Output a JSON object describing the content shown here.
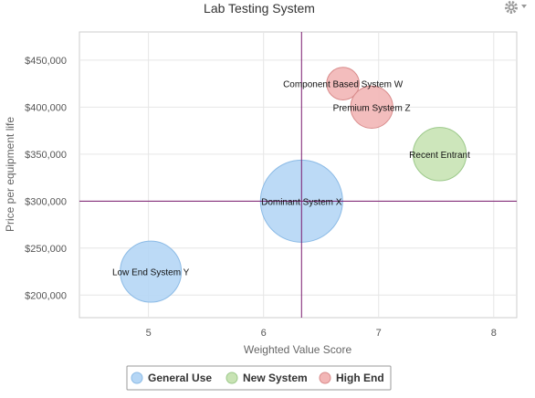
{
  "chart_data": {
    "type": "bubble",
    "title": "Lab Testing System",
    "xlabel": "Weighted Value Score",
    "ylabel": "Price per equipment life",
    "xlim": [
      4.4,
      8.2
    ],
    "ylim": [
      176000,
      480000
    ],
    "x_ticks": [
      5,
      6,
      7,
      8
    ],
    "x_tick_labels": [
      "5",
      "6",
      "7",
      "8"
    ],
    "y_ticks": [
      200000,
      250000,
      300000,
      350000,
      400000,
      450000
    ],
    "y_tick_labels": [
      "$200,000",
      "$250,000",
      "$300,000",
      "$350,000",
      "$400,000",
      "$450,000"
    ],
    "grid": true,
    "reference_lines": {
      "x": 6.33,
      "y": 300000,
      "color": "#7a1a6e"
    },
    "legend_position": "bottom",
    "series": [
      {
        "name": "General Use",
        "fill": "#b5d6f5",
        "stroke": "#8cbbe6",
        "points": [
          {
            "label": "Dominant System X",
            "x": 6.33,
            "y": 300000,
            "size": 100
          },
          {
            "label": "Low End System Y",
            "x": 5.02,
            "y": 225000,
            "size": 45
          }
        ]
      },
      {
        "name": "New System",
        "fill": "#c8e3b4",
        "stroke": "#9cc98a",
        "points": [
          {
            "label": "Recent Entrant",
            "x": 7.53,
            "y": 350000,
            "size": 30
          }
        ]
      },
      {
        "name": "High End",
        "fill": "#f2b6b6",
        "stroke": "#d98c8c",
        "points": [
          {
            "label": "Component Based System W",
            "x": 6.69,
            "y": 425000,
            "size": 5
          },
          {
            "label": "Premium System Z",
            "x": 6.94,
            "y": 400000,
            "size": 14
          }
        ]
      }
    ]
  },
  "toolbar": {
    "menu_icon": "gear-icon"
  }
}
